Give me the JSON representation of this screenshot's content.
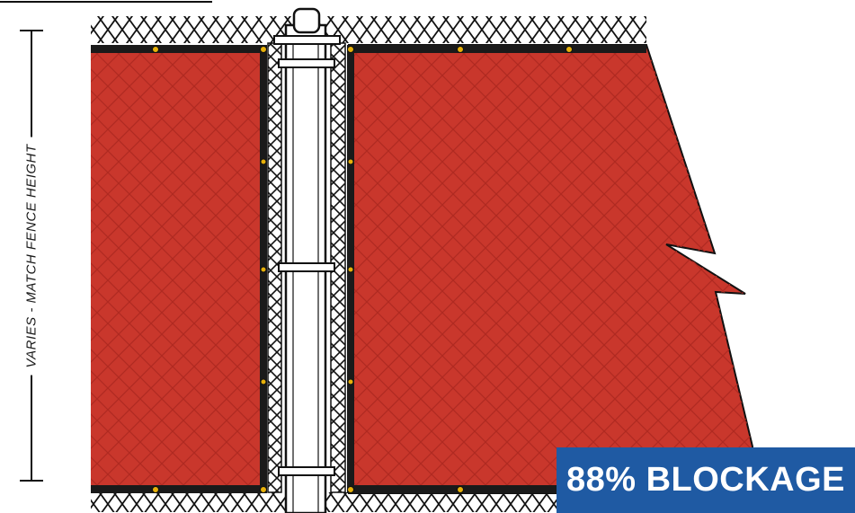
{
  "dimension": {
    "label": "VARIES - MATCH FENCE HEIGHT"
  },
  "badge": {
    "text": "88% BLOCKAGE"
  },
  "colors": {
    "screen": "#c9372c",
    "screen_mesh": "#b02a21",
    "binding": "#1a1a1a",
    "grommet": "#e7b10a",
    "badge": "#1f5aa3",
    "outline": "#111111",
    "post": "#ffffff"
  }
}
